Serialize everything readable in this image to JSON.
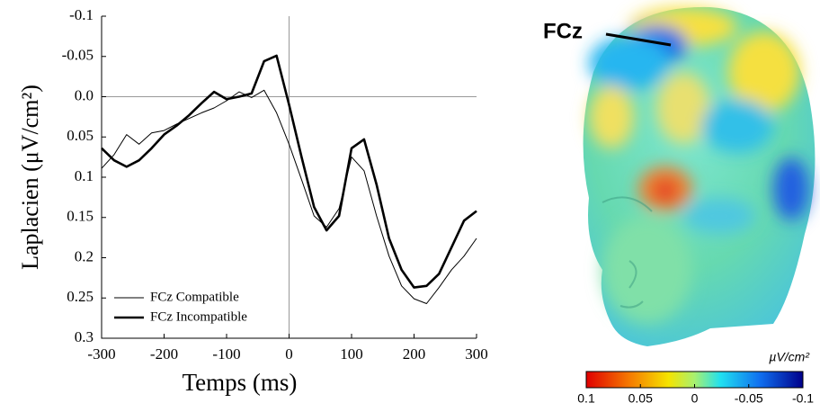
{
  "chart_data": {
    "type": "line",
    "y_label": "Laplacien (μV/cm²)",
    "x_label": "Temps (ms)",
    "x": [
      -300,
      -280,
      -260,
      -240,
      -220,
      -200,
      -180,
      -160,
      -140,
      -120,
      -100,
      -80,
      -60,
      -40,
      -20,
      0,
      20,
      40,
      60,
      80,
      100,
      120,
      140,
      160,
      180,
      200,
      220,
      240,
      260,
      280,
      300
    ],
    "series": [
      {
        "name": "FCz Compatible",
        "color": "#000000",
        "width": 1,
        "values": [
          0.089,
          0.072,
          0.047,
          0.059,
          0.045,
          0.042,
          0.034,
          0.027,
          0.02,
          0.014,
          0.005,
          -0.006,
          0.001,
          -0.008,
          0.02,
          0.059,
          0.103,
          0.148,
          0.162,
          0.139,
          0.075,
          0.092,
          0.148,
          0.198,
          0.235,
          0.251,
          0.257,
          0.237,
          0.215,
          0.198,
          0.176
        ]
      },
      {
        "name": "FCz Incompatible",
        "color": "#000000",
        "width": 2.6,
        "values": [
          0.064,
          0.079,
          0.087,
          0.079,
          0.064,
          0.047,
          0.036,
          0.023,
          0.008,
          -0.006,
          0.003,
          0.0,
          -0.004,
          -0.044,
          -0.051,
          0.01,
          0.075,
          0.137,
          0.166,
          0.148,
          0.064,
          0.053,
          0.109,
          0.176,
          0.215,
          0.237,
          0.235,
          0.22,
          0.187,
          0.154,
          0.142
        ]
      }
    ],
    "xlim": [
      -300,
      300
    ],
    "xticks": [
      -300,
      -200,
      -100,
      0,
      100,
      200,
      300
    ],
    "ylim": [
      -0.1,
      0.3
    ],
    "y_inverted": true,
    "yticks": [
      -0.1,
      -0.05,
      {
        "value": 0,
        "label": "0.0"
      },
      0.05,
      0.1,
      0.15,
      0.2,
      0.25,
      0.3
    ],
    "legend": "lower-left"
  },
  "figure": {
    "head_label": "FCz",
    "colorbar": {
      "title": "µV/cm²",
      "lim": [
        0.1,
        -0.1
      ],
      "ticks": [
        0.1,
        0.05,
        0,
        -0.05,
        -0.1
      ]
    }
  }
}
